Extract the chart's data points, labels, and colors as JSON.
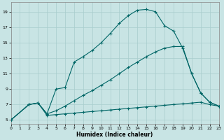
{
  "xlabel": "Humidex (Indice chaleur)",
  "bg_color": "#c8e4e4",
  "grid_color": "#a8cccc",
  "line_color": "#006666",
  "xlim": [
    0,
    23
  ],
  "ylim": [
    4.5,
    20.2
  ],
  "yticks": [
    5,
    7,
    9,
    11,
    13,
    15,
    17,
    19
  ],
  "xticks": [
    0,
    1,
    2,
    3,
    4,
    5,
    6,
    7,
    8,
    9,
    10,
    11,
    12,
    13,
    14,
    15,
    16,
    17,
    18,
    19,
    20,
    21,
    22,
    23
  ],
  "series1_x": [
    0,
    2,
    3,
    4,
    5,
    6,
    7,
    8,
    9,
    10,
    11,
    12,
    13,
    14,
    15,
    16,
    17,
    18,
    19,
    20,
    21,
    22,
    23
  ],
  "series1_y": [
    5.0,
    7.0,
    7.2,
    5.8,
    9.0,
    9.2,
    12.5,
    13.2,
    14.0,
    15.0,
    16.2,
    17.5,
    18.5,
    19.2,
    19.3,
    19.0,
    17.2,
    16.5,
    14.3,
    11.0,
    8.5,
    7.3,
    6.8
  ],
  "series2_x": [
    0,
    2,
    3,
    4,
    5,
    6,
    7,
    8,
    9,
    10,
    11,
    12,
    13,
    14,
    15,
    16,
    17,
    18,
    19,
    20,
    21,
    22,
    23
  ],
  "series2_y": [
    5.0,
    7.0,
    7.2,
    5.8,
    6.2,
    6.8,
    7.5,
    8.2,
    8.8,
    9.5,
    10.2,
    11.0,
    11.8,
    12.5,
    13.2,
    13.8,
    14.3,
    14.5,
    14.5,
    11.0,
    8.5,
    7.3,
    6.8
  ],
  "series3_x": [
    0,
    2,
    3,
    4,
    5,
    6,
    7,
    8,
    9,
    10,
    11,
    12,
    13,
    14,
    15,
    16,
    17,
    18,
    19,
    20,
    21,
    22,
    23
  ],
  "series3_y": [
    5.0,
    7.0,
    7.2,
    5.6,
    5.7,
    5.8,
    5.9,
    6.0,
    6.1,
    6.2,
    6.3,
    6.4,
    6.5,
    6.6,
    6.7,
    6.8,
    6.9,
    7.0,
    7.1,
    7.2,
    7.3,
    7.0,
    6.8
  ],
  "figwidth": 3.2,
  "figheight": 2.0,
  "dpi": 100
}
